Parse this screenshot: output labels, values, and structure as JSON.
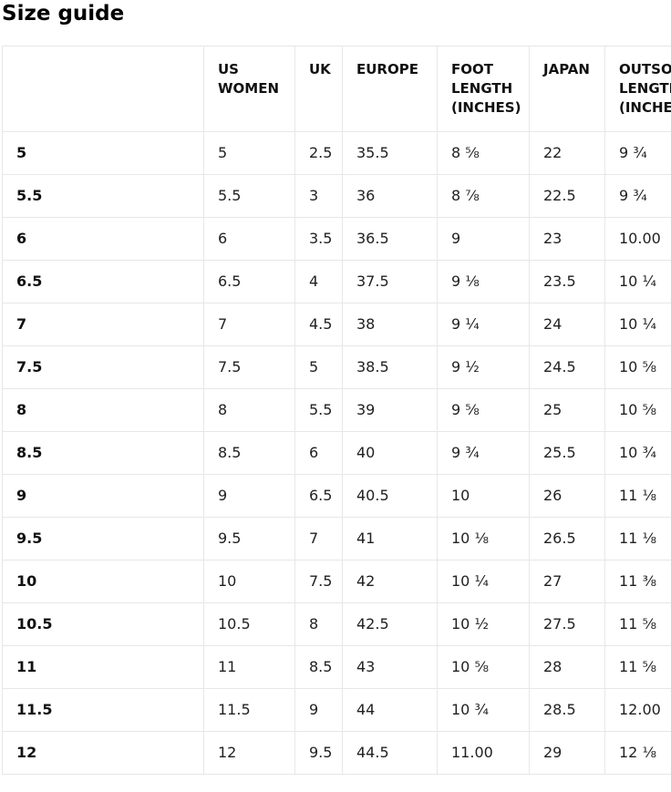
{
  "page_title": "Size guide",
  "colors": {
    "background": "#ffffff",
    "text": "#212121",
    "bold_text": "#111111",
    "border": "#e7e7e7"
  },
  "table": {
    "headers": {
      "size": "",
      "us_women": "US WOMEN",
      "uk": "UK",
      "europe": "EUROPE",
      "foot_length_in": "FOOT LENGTH (inches)",
      "japan": "JAPAN",
      "outsole_length_in": "OUTSOLE LENGTH (inches)"
    },
    "rows": [
      {
        "size": "5",
        "us_women": "5",
        "uk": "2.5",
        "europe": "35.5",
        "foot_length_in": "8 ⅝",
        "japan": "22",
        "outsole_length_in": "9 ¾"
      },
      {
        "size": "5.5",
        "us_women": "5.5",
        "uk": "3",
        "europe": "36",
        "foot_length_in": "8 ⅞",
        "japan": "22.5",
        "outsole_length_in": "9 ¾"
      },
      {
        "size": "6",
        "us_women": "6",
        "uk": "3.5",
        "europe": "36.5",
        "foot_length_in": "9",
        "japan": "23",
        "outsole_length_in": "10.00"
      },
      {
        "size": "6.5",
        "us_women": "6.5",
        "uk": "4",
        "europe": "37.5",
        "foot_length_in": "9 ⅛",
        "japan": "23.5",
        "outsole_length_in": "10 ¼"
      },
      {
        "size": "7",
        "us_women": "7",
        "uk": "4.5",
        "europe": "38",
        "foot_length_in": "9 ¼",
        "japan": "24",
        "outsole_length_in": "10 ¼"
      },
      {
        "size": "7.5",
        "us_women": "7.5",
        "uk": "5",
        "europe": "38.5",
        "foot_length_in": "9 ½",
        "japan": "24.5",
        "outsole_length_in": "10 ⅝"
      },
      {
        "size": "8",
        "us_women": "8",
        "uk": "5.5",
        "europe": "39",
        "foot_length_in": "9 ⅝",
        "japan": "25",
        "outsole_length_in": "10 ⅝"
      },
      {
        "size": "8.5",
        "us_women": "8.5",
        "uk": "6",
        "europe": "40",
        "foot_length_in": "9 ¾",
        "japan": "25.5",
        "outsole_length_in": "10 ¾"
      },
      {
        "size": "9",
        "us_women": "9",
        "uk": "6.5",
        "europe": "40.5",
        "foot_length_in": "10",
        "japan": "26",
        "outsole_length_in": "11 ⅛"
      },
      {
        "size": "9.5",
        "us_women": "9.5",
        "uk": "7",
        "europe": "41",
        "foot_length_in": "10 ⅛",
        "japan": "26.5",
        "outsole_length_in": "11 ⅛"
      },
      {
        "size": "10",
        "us_women": "10",
        "uk": "7.5",
        "europe": "42",
        "foot_length_in": "10 ¼",
        "japan": "27",
        "outsole_length_in": "11 ⅜"
      },
      {
        "size": "10.5",
        "us_women": "10.5",
        "uk": "8",
        "europe": "42.5",
        "foot_length_in": "10 ½",
        "japan": "27.5",
        "outsole_length_in": "11 ⅝"
      },
      {
        "size": "11",
        "us_women": "11",
        "uk": "8.5",
        "europe": "43",
        "foot_length_in": "10 ⅝",
        "japan": "28",
        "outsole_length_in": "11 ⅝"
      },
      {
        "size": "11.5",
        "us_women": "11.5",
        "uk": "9",
        "europe": "44",
        "foot_length_in": "10 ¾",
        "japan": "28.5",
        "outsole_length_in": "12.00"
      },
      {
        "size": "12",
        "us_women": "12",
        "uk": "9.5",
        "europe": "44.5",
        "foot_length_in": "11.00",
        "japan": "29",
        "outsole_length_in": "12 ⅛"
      }
    ]
  }
}
